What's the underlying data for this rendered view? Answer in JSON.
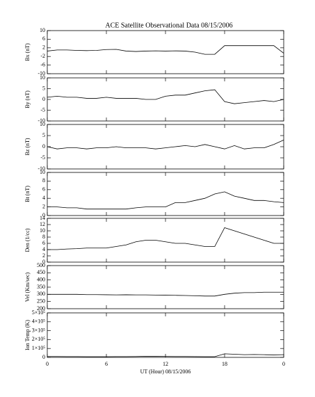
{
  "chart_data": [
    {
      "type": "line",
      "title": "ACE Satellite Observational Data   08/15/2006",
      "ylabel": "Bx (nT)",
      "x": [
        0,
        1,
        2,
        3,
        4,
        5,
        6,
        7,
        8,
        9,
        10,
        11,
        12,
        13,
        14,
        15,
        16,
        17,
        18,
        19,
        20,
        21,
        22,
        23,
        24
      ],
      "values": [
        0.5,
        1,
        1,
        0.8,
        0.7,
        0.8,
        1.2,
        1.3,
        0.5,
        0.3,
        0.5,
        0.6,
        0.5,
        0.6,
        0.5,
        0,
        -1,
        -1,
        3,
        3,
        3,
        3,
        3,
        3,
        -0.5
      ],
      "color": "#000000",
      "xlim": [
        0,
        24
      ],
      "xticks": [
        0,
        6,
        12,
        18,
        {
          "value": 24,
          "label": "0"
        }
      ],
      "ylim": [
        -10,
        10
      ],
      "yticks": [
        -10,
        -6,
        -2,
        2,
        6,
        10
      ]
    },
    {
      "type": "line",
      "ylabel": "By (nT)",
      "x": [
        0,
        1,
        2,
        3,
        4,
        5,
        6,
        7,
        8,
        9,
        10,
        11,
        12,
        13,
        14,
        15,
        16,
        17,
        18,
        19,
        20,
        21,
        22,
        23,
        24
      ],
      "values": [
        1,
        1.5,
        1,
        1,
        0.5,
        0.5,
        1,
        0.5,
        0.5,
        0.5,
        0,
        0,
        1.5,
        2,
        2,
        3,
        4,
        4.5,
        -1,
        -2,
        -1.5,
        -1,
        -0.5,
        -1,
        0
      ],
      "color": "#000000",
      "xlim": [
        0,
        24
      ],
      "xticks": [
        0,
        6,
        12,
        18,
        {
          "value": 24,
          "label": "0"
        }
      ],
      "ylim": [
        -10,
        10
      ],
      "yticks": [
        -10,
        -5,
        0,
        5,
        10
      ]
    },
    {
      "type": "line",
      "ylabel": "Bz (nT)",
      "x": [
        0,
        1,
        2,
        3,
        4,
        5,
        6,
        7,
        8,
        9,
        10,
        11,
        12,
        13,
        14,
        15,
        16,
        17,
        18,
        19,
        20,
        21,
        22,
        23,
        24
      ],
      "values": [
        0,
        -1,
        -0.5,
        -0.5,
        -1,
        -0.5,
        -0.5,
        0,
        -0.5,
        -0.5,
        -0.5,
        -1,
        -0.5,
        0,
        0.5,
        0,
        1,
        0,
        -1,
        0.5,
        -1,
        -0.5,
        -0.5,
        1,
        3
      ],
      "color": "#000000",
      "xlim": [
        0,
        24
      ],
      "xticks": [
        0,
        6,
        12,
        18,
        {
          "value": 24,
          "label": "0"
        }
      ],
      "ylim": [
        -10,
        10
      ],
      "yticks": [
        -10,
        -5,
        0,
        5,
        10
      ]
    },
    {
      "type": "line",
      "ylabel": "Bt (nT)",
      "x": [
        0,
        1,
        2,
        3,
        4,
        5,
        6,
        7,
        8,
        9,
        10,
        11,
        12,
        13,
        14,
        15,
        16,
        17,
        18,
        19,
        20,
        21,
        22,
        23,
        24
      ],
      "values": [
        2,
        2,
        1.8,
        1.8,
        1.5,
        1.5,
        1.5,
        1.5,
        1.5,
        1.8,
        2,
        2,
        2,
        3,
        3,
        3.5,
        4,
        5,
        5.5,
        4.5,
        4,
        3.5,
        3.5,
        3.2,
        3
      ],
      "color": "#000000",
      "xlim": [
        0,
        24
      ],
      "xticks": [
        0,
        6,
        12,
        18,
        {
          "value": 24,
          "label": "0"
        }
      ],
      "ylim": [
        0,
        10
      ],
      "yticks": [
        0,
        2,
        4,
        6,
        8,
        10
      ]
    },
    {
      "type": "line",
      "ylabel": "Den (1/cc)",
      "x": [
        0,
        1,
        2,
        3,
        4,
        5,
        6,
        7,
        8,
        9,
        10,
        11,
        12,
        13,
        14,
        15,
        16,
        17,
        18,
        19,
        20,
        21,
        22,
        23,
        24
      ],
      "values": [
        4,
        4,
        4.2,
        4.3,
        4.5,
        4.5,
        4.5,
        5,
        5.5,
        6.5,
        7,
        7,
        6.5,
        6,
        6,
        5.5,
        5,
        5,
        11,
        10,
        9,
        8,
        7,
        6,
        6
      ],
      "color": "#000000",
      "xlim": [
        0,
        24
      ],
      "xticks": [
        0,
        6,
        12,
        18,
        {
          "value": 24,
          "label": "0"
        }
      ],
      "ylim": [
        0,
        14
      ],
      "yticks": [
        0,
        2,
        4,
        6,
        8,
        10,
        12,
        14
      ]
    },
    {
      "type": "line",
      "ylabel": "Vel (Km/sec)",
      "x": [
        0,
        1,
        2,
        3,
        4,
        5,
        6,
        7,
        8,
        9,
        10,
        11,
        12,
        13,
        14,
        15,
        16,
        17,
        18,
        19,
        20,
        21,
        22,
        23,
        24
      ],
      "values": [
        300,
        300,
        300,
        300,
        298,
        298,
        297,
        296,
        297,
        296,
        296,
        295,
        294,
        293,
        292,
        290,
        288,
        288,
        300,
        308,
        312,
        312,
        315,
        315,
        315
      ],
      "color": "#000000",
      "xlim": [
        0,
        24
      ],
      "xticks": [
        0,
        6,
        12,
        18,
        {
          "value": 24,
          "label": "0"
        }
      ],
      "ylim": [
        200,
        500
      ],
      "yticks": [
        200,
        250,
        300,
        350,
        400,
        450,
        500
      ]
    },
    {
      "type": "line",
      "ylabel": "Ion Temp (K)",
      "xlabel": "UT (Hour)   08/15/2006",
      "x": [
        0,
        1,
        2,
        3,
        4,
        5,
        6,
        7,
        8,
        9,
        10,
        11,
        12,
        13,
        14,
        15,
        16,
        17,
        18,
        19,
        20,
        21,
        22,
        23,
        24
      ],
      "values": [
        10000,
        10000,
        9000,
        9000,
        8000,
        8000,
        8000,
        9000,
        9000,
        10000,
        12000,
        12000,
        11000,
        10000,
        10000,
        9000,
        8000,
        8000,
        40000,
        35000,
        30000,
        32000,
        30000,
        28000,
        30000
      ],
      "color": "#000000",
      "xlim": [
        0,
        24
      ],
      "xticks": [
        0,
        6,
        12,
        18,
        {
          "value": 24,
          "label": "0"
        }
      ],
      "ylim": [
        0,
        500000
      ],
      "yticks": [
        0,
        {
          "value": 100000,
          "label": "1×10⁵"
        },
        {
          "value": 200000,
          "label": "2×10⁵"
        },
        {
          "value": 300000,
          "label": "3×10⁵"
        },
        {
          "value": 400000,
          "label": "4×10⁵"
        },
        {
          "value": 500000,
          "label": "5×10⁵"
        }
      ]
    }
  ]
}
